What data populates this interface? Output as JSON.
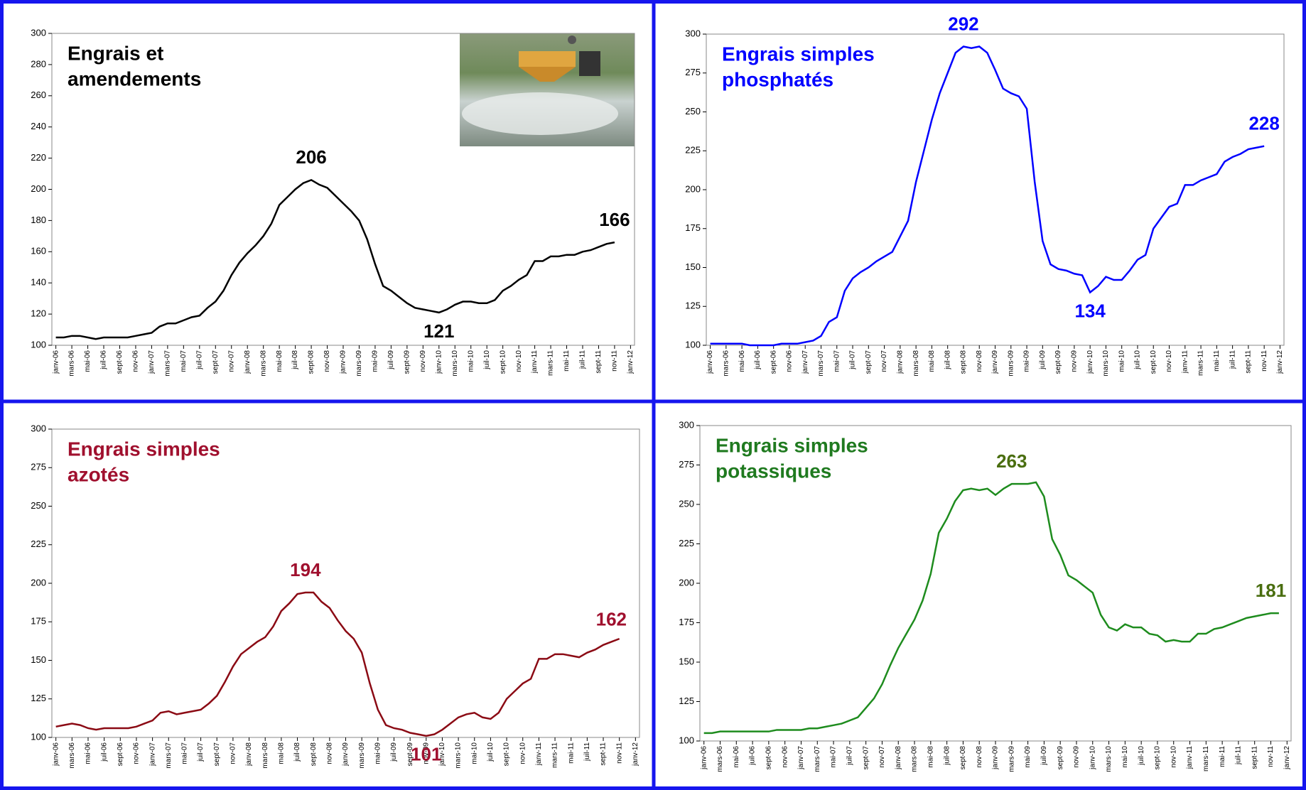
{
  "chart_data": [
    {
      "type": "line",
      "title_lines": [
        "Engrais et",
        "amendements"
      ],
      "color": "#000000",
      "title_color": "#000000",
      "label_color": "#000000",
      "ylim": [
        100,
        300
      ],
      "yticks": [
        100,
        120,
        140,
        160,
        180,
        200,
        220,
        240,
        260,
        280,
        300
      ],
      "categories": [
        "janv-06",
        null,
        "mars-06",
        null,
        "mai-06",
        null,
        "juil-06",
        null,
        "sept-06",
        null,
        "nov-06",
        null,
        "janv-07",
        null,
        "mars-07",
        null,
        "mai-07",
        null,
        "juil-07",
        null,
        "sept-07",
        null,
        "nov-07",
        null,
        "janv-08",
        null,
        "mars-08",
        null,
        "mai-08",
        null,
        "juil-08",
        null,
        "sept-08",
        null,
        "nov-08",
        null,
        "janv-09",
        null,
        "mars-09",
        null,
        "mai-09",
        null,
        "juil-09",
        null,
        "sept-09",
        null,
        "nov-09",
        null,
        "janv-10",
        null,
        "mars-10",
        null,
        "mai-10",
        null,
        "juil-10",
        null,
        "sept-10",
        null,
        "nov-10",
        null,
        "janv-11",
        null,
        "mars-11",
        null,
        "mai-11",
        null,
        "juil-11",
        null,
        "sept-11",
        null,
        "nov-11",
        null,
        "janv-12"
      ],
      "values": [
        105,
        105,
        106,
        106,
        105,
        104,
        105,
        105,
        105,
        105,
        106,
        107,
        108,
        112,
        114,
        114,
        116,
        118,
        119,
        124,
        128,
        135,
        145,
        153,
        159,
        164,
        170,
        178,
        190,
        195,
        200,
        204,
        206,
        203,
        201,
        196,
        191,
        186,
        180,
        168,
        152,
        138,
        135,
        131,
        127,
        124,
        123,
        122,
        121,
        123,
        126,
        128,
        128,
        127,
        127,
        129,
        135,
        138,
        142,
        145,
        154,
        154,
        157,
        157,
        158,
        158,
        160,
        161,
        163,
        165,
        166,
        null,
        null
      ],
      "value_labels": [
        null,
        null,
        null,
        null,
        null,
        null,
        null,
        null,
        null,
        null,
        null,
        null,
        null,
        null,
        null,
        null,
        null,
        null,
        null,
        null,
        null,
        null,
        null,
        null,
        null,
        null,
        null,
        null,
        null,
        null,
        null,
        null,
        "206",
        null,
        null,
        null,
        null,
        null,
        null,
        null,
        null,
        null,
        null,
        null,
        null,
        null,
        null,
        null,
        "121",
        null,
        null,
        null,
        null,
        null,
        null,
        null,
        null,
        null,
        null,
        null,
        null,
        null,
        null,
        null,
        null,
        null,
        null,
        null,
        null,
        null,
        "166",
        null,
        null
      ]
    },
    {
      "type": "line",
      "title_lines": [
        "Engrais simples",
        "phosphatés"
      ],
      "color": "#0000ff",
      "title_color": "#0000ff",
      "label_color": "#0000ff",
      "ylim": [
        100,
        300
      ],
      "yticks": [
        100,
        125,
        150,
        175,
        200,
        225,
        250,
        275,
        300
      ],
      "categories": [
        "janv-06",
        null,
        "mars-06",
        null,
        "mai-06",
        null,
        "juil-06",
        null,
        "sept-06",
        null,
        "nov-06",
        null,
        "janv-07",
        null,
        "mars-07",
        null,
        "mai-07",
        null,
        "juil-07",
        null,
        "sept-07",
        null,
        "nov-07",
        null,
        "janv-08",
        null,
        "mars-08",
        null,
        "mai-08",
        null,
        "juil-08",
        null,
        "sept-08",
        null,
        "nov-08",
        null,
        "janv-09",
        null,
        "mars-09",
        null,
        "mai-09",
        null,
        "juil-09",
        null,
        "sept-09",
        null,
        "nov-09",
        null,
        "janv-10",
        null,
        "mars-10",
        null,
        "mai-10",
        null,
        "juil-10",
        null,
        "sept-10",
        null,
        "nov-10",
        null,
        "janv-11",
        null,
        "mars-11",
        null,
        "mai-11",
        null,
        "juil-11",
        null,
        "sept-11",
        null,
        "nov-11",
        null,
        "janv-12"
      ],
      "values": [
        101,
        101,
        101,
        101,
        101,
        100,
        100,
        100,
        100,
        101,
        101,
        101,
        102,
        103,
        106,
        115,
        118,
        135,
        143,
        147,
        150,
        154,
        157,
        160,
        170,
        180,
        205,
        225,
        245,
        262,
        275,
        288,
        292,
        291,
        292,
        288,
        277,
        265,
        262,
        260,
        252,
        205,
        167,
        152,
        149,
        148,
        146,
        145,
        134,
        138,
        144,
        142,
        142,
        148,
        155,
        158,
        175,
        182,
        189,
        191,
        203,
        203,
        206,
        208,
        210,
        218,
        221,
        223,
        226,
        227,
        228,
        null,
        null
      ],
      "value_labels": [
        null,
        null,
        null,
        null,
        null,
        null,
        null,
        null,
        null,
        null,
        null,
        null,
        null,
        null,
        null,
        null,
        null,
        null,
        null,
        null,
        null,
        null,
        null,
        null,
        null,
        null,
        null,
        null,
        null,
        null,
        null,
        null,
        "292",
        null,
        null,
        null,
        null,
        null,
        null,
        null,
        null,
        null,
        null,
        null,
        null,
        null,
        null,
        null,
        "134",
        null,
        null,
        null,
        null,
        null,
        null,
        null,
        null,
        null,
        null,
        null,
        null,
        null,
        null,
        null,
        null,
        null,
        null,
        null,
        null,
        null,
        "228",
        null,
        null
      ]
    },
    {
      "type": "line",
      "title_lines": [
        "Engrais simples",
        "azotés"
      ],
      "color": "#8b0a14",
      "title_color": "#a0102e",
      "label_color": "#a0102e",
      "ylim": [
        100,
        300
      ],
      "yticks": [
        100,
        125,
        150,
        175,
        200,
        225,
        250,
        275,
        300
      ],
      "categories": [
        "janv-06",
        null,
        "mars-06",
        null,
        "mai-06",
        null,
        "juil-06",
        null,
        "sept-06",
        null,
        "nov-06",
        null,
        "janv-07",
        null,
        "mars-07",
        null,
        "mai-07",
        null,
        "juil-07",
        null,
        "sept-07",
        null,
        "nov-07",
        null,
        "janv-08",
        null,
        "mars-08",
        null,
        "mai-08",
        null,
        "juil-08",
        null,
        "sept-08",
        null,
        "nov-08",
        null,
        "janv-09",
        null,
        "mars-09",
        null,
        "mai-09",
        null,
        "juil-09",
        null,
        "sept-09",
        null,
        "nov-09",
        null,
        "janv-10",
        null,
        "mars-10",
        null,
        "mai-10",
        null,
        "juil-10",
        null,
        "sept-10",
        null,
        "nov-10",
        null,
        "janv-11",
        null,
        "mars-11",
        null,
        "mai-11",
        null,
        "juil-11",
        null,
        "sept-11",
        null,
        "nov-11",
        null,
        "janv-12"
      ],
      "values": [
        107,
        108,
        109,
        108,
        106,
        105,
        106,
        106,
        106,
        106,
        107,
        109,
        111,
        116,
        117,
        115,
        116,
        117,
        118,
        122,
        127,
        136,
        146,
        154,
        158,
        162,
        165,
        172,
        182,
        187,
        193,
        194,
        194,
        188,
        184,
        176,
        169,
        164,
        155,
        135,
        118,
        108,
        106,
        105,
        103,
        102,
        101,
        102,
        105,
        109,
        113,
        115,
        116,
        113,
        112,
        116,
        125,
        130,
        135,
        138,
        151,
        151,
        154,
        154,
        153,
        152,
        155,
        157,
        160,
        162,
        164,
        null,
        null
      ],
      "value_labels": [
        null,
        null,
        null,
        null,
        null,
        null,
        null,
        null,
        null,
        null,
        null,
        null,
        null,
        null,
        null,
        null,
        null,
        null,
        null,
        null,
        null,
        null,
        null,
        null,
        null,
        null,
        null,
        null,
        null,
        null,
        null,
        "194",
        null,
        null,
        null,
        null,
        null,
        null,
        null,
        null,
        null,
        null,
        null,
        null,
        null,
        null,
        "101",
        null,
        null,
        null,
        null,
        null,
        null,
        null,
        null,
        null,
        null,
        null,
        null,
        null,
        null,
        null,
        null,
        null,
        null,
        null,
        null,
        null,
        null,
        "162",
        null,
        null,
        null
      ]
    },
    {
      "type": "line",
      "title_lines": [
        "Engrais simples",
        "potassiques"
      ],
      "color": "#1e8c1e",
      "title_color": "#1f7a1f",
      "label_color": "#4a6e10",
      "ylim": [
        100,
        300
      ],
      "yticks": [
        100,
        125,
        150,
        175,
        200,
        225,
        250,
        275,
        300
      ],
      "categories": [
        "janv-06",
        null,
        "mars-06",
        null,
        "mai-06",
        null,
        "juil-06",
        null,
        "sept-06",
        null,
        "nov-06",
        null,
        "janv-07",
        null,
        "mars-07",
        null,
        "mai-07",
        null,
        "juil-07",
        null,
        "sept-07",
        null,
        "nov-07",
        null,
        "janv-08",
        null,
        "mars-08",
        null,
        "mai-08",
        null,
        "juil-08",
        null,
        "sept-08",
        null,
        "nov-08",
        null,
        "janv-09",
        null,
        "mars-09",
        null,
        "mai-09",
        null,
        "juil-09",
        null,
        "sept-09",
        null,
        "nov-09",
        null,
        "janv-10",
        null,
        "mars-10",
        null,
        "mai-10",
        null,
        "juil-10",
        null,
        "sept-10",
        null,
        "nov-10",
        null,
        "janv-11",
        null,
        "mars-11",
        null,
        "mai-11",
        null,
        "juil-11",
        null,
        "sept-11",
        null,
        "nov-11",
        null,
        "janv-12"
      ],
      "values": [
        105,
        105,
        106,
        106,
        106,
        106,
        106,
        106,
        106,
        107,
        107,
        107,
        107,
        108,
        108,
        109,
        110,
        111,
        113,
        115,
        121,
        127,
        136,
        148,
        159,
        168,
        177,
        189,
        206,
        232,
        241,
        252,
        259,
        260,
        259,
        260,
        256,
        260,
        263,
        263,
        263,
        264,
        255,
        228,
        218,
        205,
        202,
        198,
        194,
        180,
        172,
        170,
        174,
        172,
        172,
        168,
        167,
        163,
        164,
        163,
        163,
        168,
        168,
        171,
        172,
        174,
        176,
        178,
        179,
        180,
        181,
        181,
        null
      ],
      "value_labels": [
        null,
        null,
        null,
        null,
        null,
        null,
        null,
        null,
        null,
        null,
        null,
        null,
        null,
        null,
        null,
        null,
        null,
        null,
        null,
        null,
        null,
        null,
        null,
        null,
        null,
        null,
        null,
        null,
        null,
        null,
        null,
        null,
        null,
        null,
        null,
        null,
        null,
        null,
        "263",
        null,
        null,
        null,
        null,
        null,
        null,
        null,
        null,
        null,
        null,
        null,
        null,
        null,
        null,
        null,
        null,
        null,
        null,
        null,
        null,
        null,
        null,
        null,
        null,
        null,
        null,
        null,
        null,
        null,
        null,
        null,
        "181",
        null,
        null
      ]
    }
  ]
}
